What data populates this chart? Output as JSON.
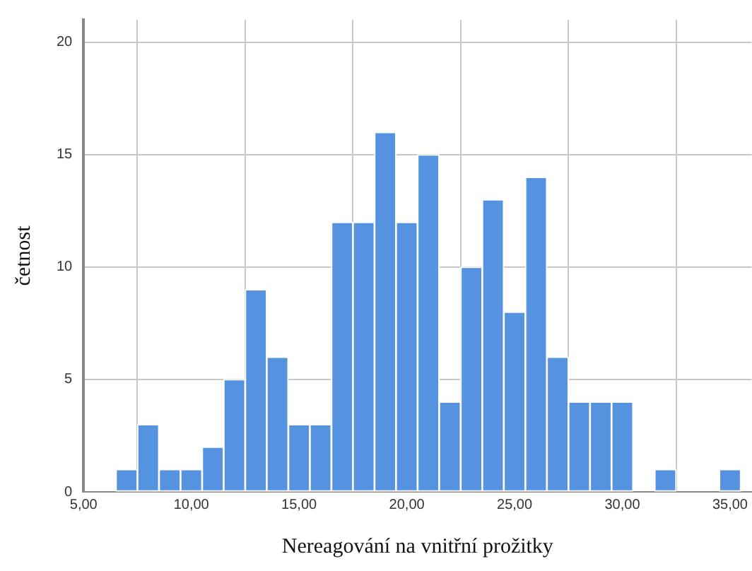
{
  "chart_data": {
    "type": "histogram",
    "xlabel": "Nereagování na vnitřní prožitky",
    "ylabel": "četnost",
    "bins": [
      6.5,
      7.5,
      8.5,
      9.5,
      10.5,
      11.5,
      12.5,
      13.5,
      14.5,
      15.5,
      16.5,
      17.5,
      18.5,
      19.5,
      20.5,
      21.5,
      22.5,
      23.5,
      24.5,
      25.5,
      26.5,
      27.5,
      28.5,
      29.5,
      30.5,
      31.5,
      32.5,
      33.5,
      34.5,
      35.5
    ],
    "values": [
      1,
      3,
      1,
      1,
      2,
      5,
      9,
      6,
      3,
      3,
      12,
      12,
      16,
      12,
      15,
      4,
      10,
      13,
      8,
      14,
      6,
      4,
      4,
      4,
      0,
      1,
      0,
      0,
      1
    ],
    "color": "#5592e0",
    "xlim": [
      5,
      36
    ],
    "xticks": [
      {
        "value": 5,
        "label": "5,00"
      },
      {
        "value": 10,
        "label": "10,00"
      },
      {
        "value": 15,
        "label": "15,00"
      },
      {
        "value": 20,
        "label": "20,00"
      },
      {
        "value": 25,
        "label": "25,00"
      },
      {
        "value": 30,
        "label": "30,00"
      },
      {
        "value": 35,
        "label": "35,00"
      }
    ],
    "ylim": [
      0,
      21
    ],
    "yticks": [
      0,
      5,
      10,
      15,
      20
    ],
    "grid": true
  }
}
